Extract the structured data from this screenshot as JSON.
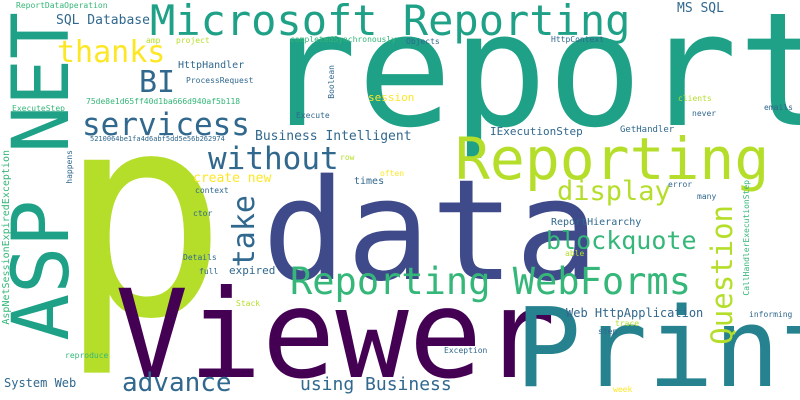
{
  "colors": {
    "background": "#ffffff",
    "purple": "#440154",
    "indigo": "#3e4a89",
    "navy": "#31688e",
    "teal": "#26828e",
    "green": "#1fa187",
    "mint": "#35b779",
    "lightgreen": "#6ece58",
    "lime": "#b5de2b",
    "yellow": "#fde725"
  },
  "words": {
    "p": "p",
    "report": "report",
    "data": "data",
    "viewer": "Viewer",
    "print": "Print",
    "asp_net": "ASP NET",
    "microsoft_reporting": "Microsoft Reporting",
    "reporting": "Reporting",
    "reporting_webforms": "Reporting WebForms",
    "servicess": "servicess",
    "without": "without",
    "take": "take",
    "display": "display",
    "blockquote": "blockquote",
    "question": "Question",
    "thanks": "thanks",
    "bi": "BI",
    "advance": "advance",
    "using_business": "using Business",
    "sql_database": "SQL Database",
    "ms_sql": "MS SQL",
    "business_intelligent": "Business Intelligent",
    "create_new": "create new",
    "web_httpapplication": "Web HttpApplication",
    "system_web": "System Web",
    "aspnetsessionexpiredexception": "AspNetSessionExpiredException",
    "reportdataoperation": "ReportDataOperation",
    "httphandler": "HttpHandler",
    "processrequest": "ProcessRequest",
    "iexecutionstep": "IExecutionStep",
    "reporthierarchy": "ReportHierarchy",
    "httpcontext": "HttpContext",
    "completedsynchronously": "completedSynchronously",
    "objects": "Objects",
    "amp": "amp",
    "project": "project",
    "boolean": "Boolean",
    "executestep": "ExecuteStep",
    "hash": "75de8e1d65ff40d1ba666d940af5b118",
    "hash2": "5210064be1fa4d6abf5dd5e56b262974",
    "session": "session",
    "execute": "Execute",
    "clients": "clients",
    "emails": "emails",
    "never": "never",
    "gethandler": "GetHandler",
    "row": "row",
    "often": "often",
    "times": "times",
    "context": "context",
    "happens": "happens",
    "ctor": "ctor",
    "error": "error",
    "many": "many",
    "callhandlerexecutionstep": "CallHandlerExecutionStep",
    "able": "able",
    "details": "Details",
    "full": "full",
    "expired": "expired",
    "stack": "Stack",
    "trace": "trace",
    "step": "step",
    "informing": "informing",
    "reproduce": "reproduce",
    "exception": "Exception",
    "week": "week"
  }
}
